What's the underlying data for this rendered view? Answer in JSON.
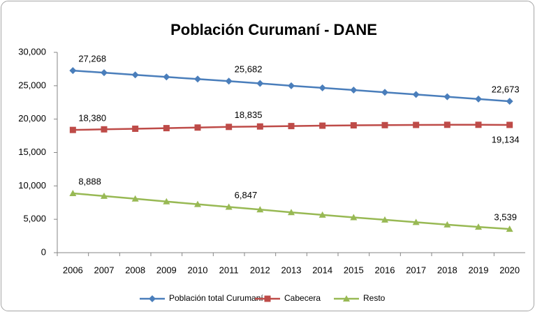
{
  "chart_data": {
    "type": "line",
    "title": "Población Curumaní - DANE",
    "categories": [
      "2006",
      "2007",
      "2008",
      "2009",
      "2010",
      "2011",
      "2012",
      "2013",
      "2014",
      "2015",
      "2016",
      "2017",
      "2018",
      "2019",
      "2020"
    ],
    "series": [
      {
        "name": "Población total  Curumaní",
        "color": "#4a7ebb",
        "marker": "diamond",
        "values": [
          27268,
          26950,
          26630,
          26310,
          26000,
          25682,
          25350,
          25000,
          24680,
          24350,
          24020,
          23690,
          23350,
          23010,
          22673
        ],
        "value_labels": [
          "27,268",
          null,
          null,
          null,
          null,
          "25,682",
          null,
          null,
          null,
          null,
          null,
          null,
          null,
          null,
          "22,673"
        ]
      },
      {
        "name": "Cabecera",
        "color": "#be4b48",
        "marker": "square",
        "values": [
          18380,
          18470,
          18560,
          18650,
          18740,
          18835,
          18900,
          18960,
          19020,
          19070,
          19100,
          19130,
          19150,
          19150,
          19134
        ],
        "value_labels": [
          "18,380",
          null,
          null,
          null,
          null,
          "18,835",
          null,
          null,
          null,
          null,
          null,
          null,
          null,
          null,
          "19,134"
        ]
      },
      {
        "name": "Resto",
        "color": "#98b954",
        "marker": "triangle",
        "values": [
          8888,
          8480,
          8070,
          7660,
          7250,
          6847,
          6450,
          6040,
          5660,
          5280,
          4920,
          4560,
          4200,
          3860,
          3539
        ],
        "value_labels": [
          "8,888",
          null,
          null,
          null,
          null,
          "6,847",
          null,
          null,
          null,
          null,
          null,
          null,
          null,
          null,
          "3,539"
        ]
      }
    ],
    "ylim": [
      0,
      30000
    ],
    "yticks": [
      0,
      {
        "value": 5000,
        "label": "5,000"
      },
      {
        "value": 10000,
        "label": "10,000"
      },
      {
        "value": 15000,
        "label": "15,000"
      },
      {
        "value": 20000,
        "label": "20,000"
      },
      {
        "value": 25000,
        "label": "25,000"
      },
      {
        "value": 30000,
        "label": "30,000"
      }
    ],
    "legend": "bottom"
  }
}
